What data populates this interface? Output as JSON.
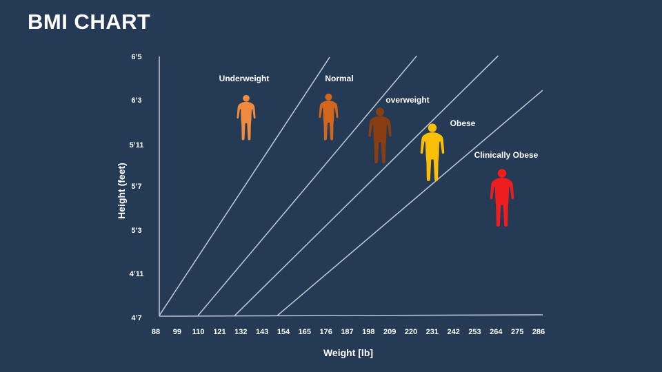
{
  "slide": {
    "title": "BMI CHART"
  },
  "chart_data": {
    "type": "line",
    "xlabel": "Weight [lb]",
    "ylabel": "Height (feet)",
    "x_ticks": [
      "88",
      "99",
      "110",
      "121",
      "132",
      "143",
      "154",
      "165",
      "176",
      "187",
      "198",
      "209",
      "220",
      "231",
      "242",
      "253",
      "264",
      "275",
      "286"
    ],
    "y_ticks": [
      "4’7",
      "4’11",
      "5’3",
      "5’7",
      "5’11",
      "6’3",
      "6’5"
    ],
    "xlim": [
      88,
      286
    ],
    "ylim": [
      "4’7",
      "6’5"
    ],
    "grid": false,
    "legend": "none",
    "line_color": "#b9c4d3",
    "boundary_lines": [
      {
        "x": [
          88,
          176
        ]
      },
      {
        "x": [
          108,
          221
        ]
      },
      {
        "x": [
          127,
          263
        ]
      },
      {
        "x": [
          149,
          286
        ]
      }
    ],
    "categories": [
      {
        "label": "Underweight",
        "color": "#f08a3e"
      },
      {
        "label": "Normal",
        "color": "#d2661d"
      },
      {
        "label": "overweight",
        "color": "#8b3d12"
      },
      {
        "label": "Obese",
        "color": "#fbbf08"
      },
      {
        "label": "Clinically Obese",
        "color": "#ef1d1d"
      }
    ]
  }
}
